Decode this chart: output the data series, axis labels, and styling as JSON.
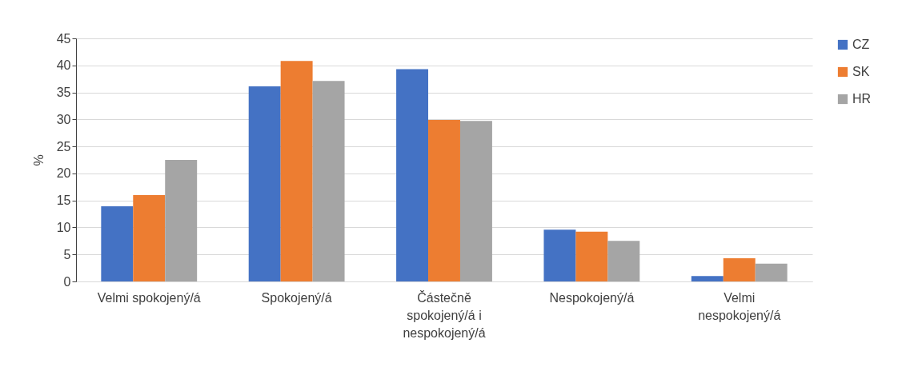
{
  "chart_data": {
    "type": "bar",
    "ylabel": "%",
    "categories": [
      "Velmi spokojený/á",
      "Spokojený/á",
      "Částečně spokojený/á i nespokojený/á",
      "Nespokojený/á",
      "Velmi nespokojený/á"
    ],
    "series": [
      {
        "name": "CZ",
        "color": "#4472c4",
        "values": [
          13.9,
          36.1,
          39.3,
          9.6,
          1.0
        ]
      },
      {
        "name": "SK",
        "color": "#ed7d31",
        "values": [
          16.0,
          40.8,
          29.9,
          9.2,
          4.3
        ]
      },
      {
        "name": "HR",
        "color": "#a5a5a5",
        "values": [
          22.5,
          37.1,
          29.7,
          7.5,
          3.3
        ]
      }
    ],
    "ylim": [
      0,
      45
    ],
    "yticks": [
      0,
      5,
      10,
      15,
      20,
      25,
      30,
      35,
      40,
      45
    ],
    "grid": "y",
    "legend": "right"
  }
}
